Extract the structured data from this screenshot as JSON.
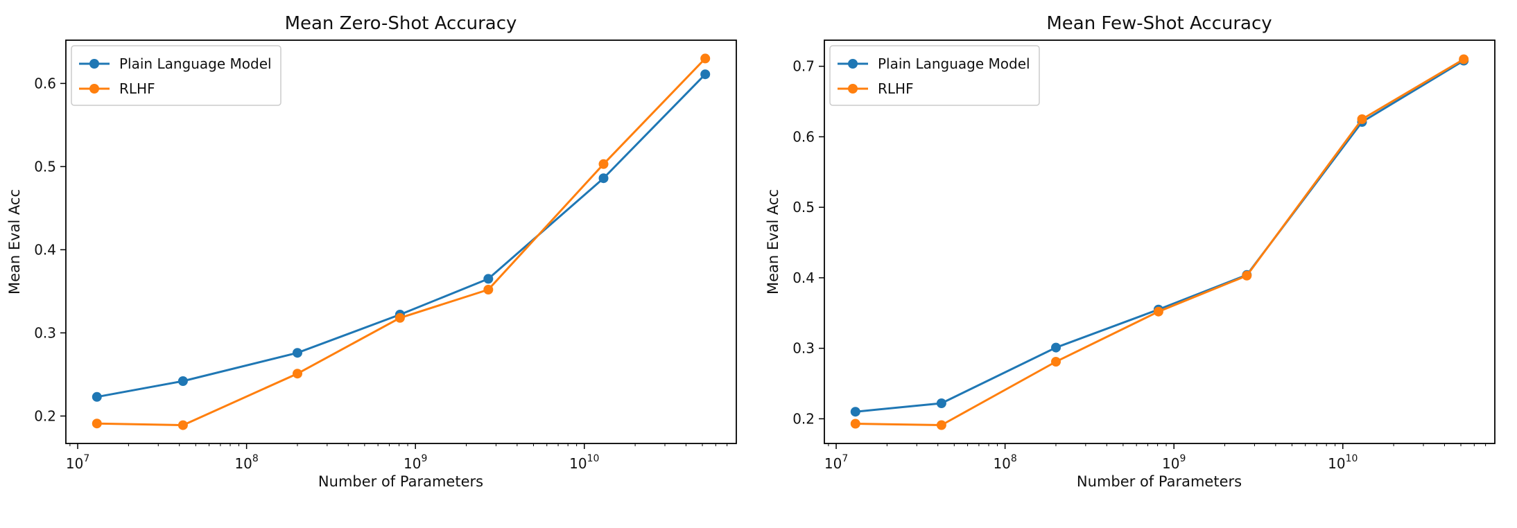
{
  "figure": {
    "background": "#ffffff"
  },
  "colors": {
    "plain": "#1f77b4",
    "rlhf": "#ff7f0e"
  },
  "chart_data": [
    {
      "type": "line",
      "title": "Mean Zero-Shot Accuracy",
      "xlabel": "Number of Parameters",
      "ylabel": "Mean Eval Acc",
      "xscale": "log",
      "grid": false,
      "legend_position": "upper left",
      "x": [
        13000000,
        42000000,
        200000000,
        810000000,
        2700000000,
        13000000000,
        52000000000
      ],
      "series": [
        {
          "name": "Plain Language Model",
          "color": "#1f77b4",
          "values": [
            0.223,
            0.242,
            0.276,
            0.322,
            0.365,
            0.486,
            0.611
          ]
        },
        {
          "name": "RLHF",
          "color": "#ff7f0e",
          "values": [
            0.191,
            0.189,
            0.251,
            0.318,
            0.352,
            0.503,
            0.63
          ]
        }
      ],
      "xticks_exp": [
        7,
        8,
        9,
        10
      ],
      "xtick_labels": [
        "10^7",
        "10^8",
        "10^9",
        "10^10"
      ],
      "yticks": [
        0.2,
        0.3,
        0.4,
        0.5,
        0.6
      ],
      "xlim_log": [
        6.93,
        10.9
      ],
      "ylim": [
        0.167,
        0.652
      ]
    },
    {
      "type": "line",
      "title": "Mean Few-Shot Accuracy",
      "xlabel": "Number of Parameters",
      "ylabel": "Mean Eval Acc",
      "xscale": "log",
      "grid": false,
      "legend_position": "upper left",
      "x": [
        13000000,
        42000000,
        200000000,
        810000000,
        2700000000,
        13000000000,
        52000000000
      ],
      "series": [
        {
          "name": "Plain Language Model",
          "color": "#1f77b4",
          "values": [
            0.21,
            0.222,
            0.301,
            0.355,
            0.404,
            0.621,
            0.708
          ]
        },
        {
          "name": "RLHF",
          "color": "#ff7f0e",
          "values": [
            0.193,
            0.191,
            0.281,
            0.352,
            0.403,
            0.625,
            0.71
          ]
        }
      ],
      "xticks_exp": [
        7,
        8,
        9,
        10
      ],
      "xtick_labels": [
        "10^7",
        "10^8",
        "10^9",
        "10^10"
      ],
      "yticks": [
        0.2,
        0.3,
        0.4,
        0.5,
        0.6,
        0.7
      ],
      "xlim_log": [
        6.93,
        10.9
      ],
      "ylim": [
        0.165,
        0.737
      ]
    }
  ]
}
